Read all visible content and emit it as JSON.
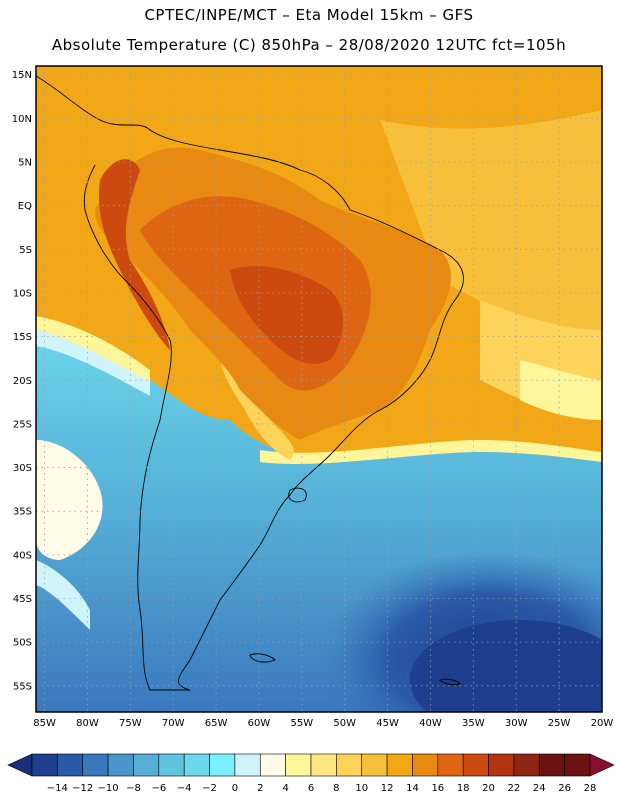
{
  "header": {
    "line1": "CPTEC/INPE/MCT –  Eta Model 15km – GFS",
    "line2": "Absolute Temperature (C) 850hPa – 28/08/2020 12UTC fct=105h"
  },
  "map": {
    "region": "South America",
    "lat_labels": [
      "15N",
      "10N",
      "5N",
      "EQ",
      "5S",
      "10S",
      "15S",
      "20S",
      "25S",
      "30S",
      "35S",
      "40S",
      "45S",
      "50S",
      "55S"
    ],
    "lon_labels": [
      "85W",
      "80W",
      "75W",
      "70W",
      "65W",
      "60W",
      "55W",
      "50W",
      "45W",
      "40W",
      "35W",
      "30W",
      "25W",
      "20W"
    ],
    "lat_range": [
      -58,
      16
    ],
    "lon_range": [
      -86,
      -20
    ],
    "grid": "dotted",
    "palette": [
      "#ffffff",
      "#1e3e8e",
      "#2a5aa8",
      "#3a78be",
      "#4896cc",
      "#54aed6",
      "#5fc4e0",
      "#6cd8ec",
      "#7af0fc",
      "#cff4fc",
      "#fffbe6",
      "#fff59a",
      "#ffe680",
      "#fdd35a",
      "#f7c03a",
      "#f2a716",
      "#e88a12",
      "#de6612",
      "#cc4a10",
      "#b23410",
      "#8f2414",
      "#6d1212"
    ]
  },
  "colorbar": {
    "labels": [
      "-14",
      "-12",
      "-10",
      "-8",
      "-6",
      "-4",
      "-2",
      "0",
      "2",
      "4",
      "6",
      "8",
      "10",
      "12",
      "14",
      "16",
      "18",
      "20",
      "22",
      "24",
      "26",
      "28"
    ],
    "colors": [
      "#1e3e8e",
      "#2a5aa8",
      "#3a78be",
      "#4896cc",
      "#54aed6",
      "#5fc4e0",
      "#6cd8ec",
      "#7af0fc",
      "#cff4fc",
      "#fffbe6",
      "#fff59a",
      "#ffe680",
      "#fdd35a",
      "#f7c03a",
      "#f2a716",
      "#e88a12",
      "#de6612",
      "#cc4a10",
      "#b23410",
      "#8f2414",
      "#6d1212",
      "#6d1212"
    ],
    "low_end_color": "#1a2f7a",
    "high_end_color": "#8a0f2e"
  }
}
